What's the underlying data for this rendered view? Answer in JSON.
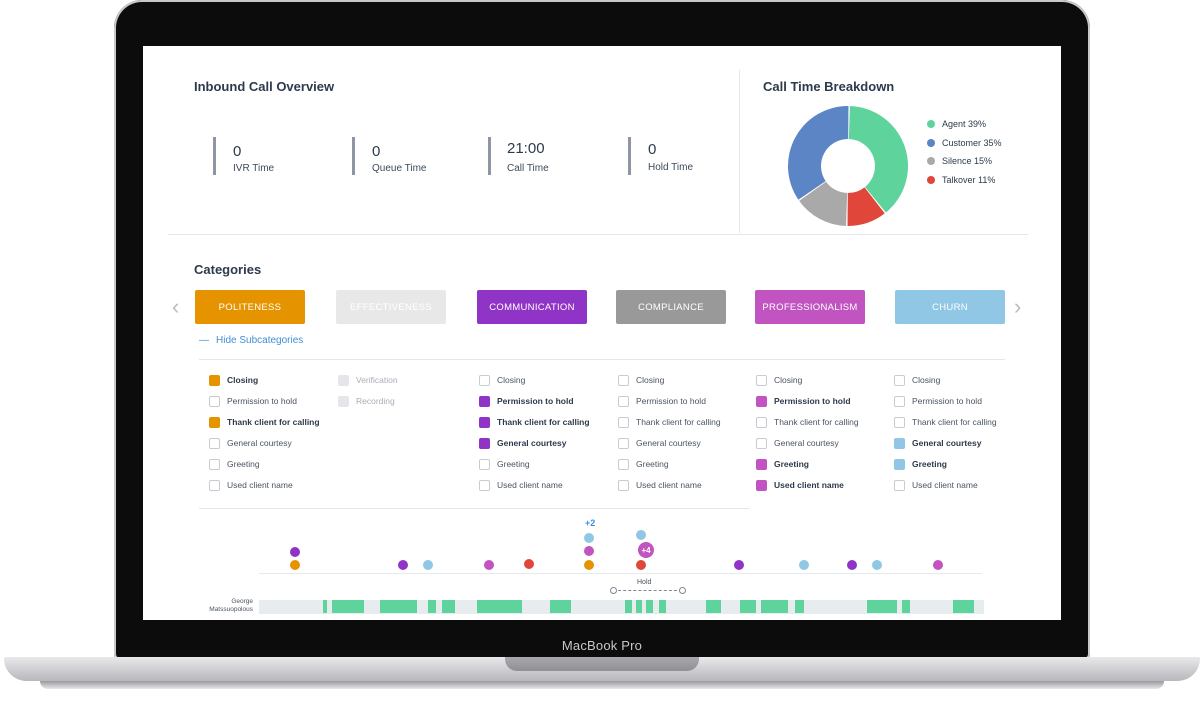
{
  "device": {
    "label": "MacBook Pro"
  },
  "overview": {
    "title": "Inbound Call Overview",
    "metrics": [
      {
        "value": "0",
        "label": "IVR Time"
      },
      {
        "value": "0",
        "label": "Queue Time"
      },
      {
        "value": "21:00",
        "label": "Call Time"
      },
      {
        "value": "0",
        "label": "Hold Time"
      }
    ]
  },
  "breakdown": {
    "title": "Call Time Breakdown",
    "legend": [
      {
        "label": "Agent 39%",
        "color": "#5fd39c",
        "percent": 39
      },
      {
        "label": "Customer 35%",
        "color": "#5c85c6",
        "percent": 35
      },
      {
        "label": "Silence 15%",
        "color": "#a9a9a9",
        "percent": 15
      },
      {
        "label": "Talkover 11%",
        "color": "#e0473a",
        "percent": 11
      }
    ]
  },
  "categories": {
    "title": "Categories",
    "hide_label": "Hide Subcategories",
    "tabs": [
      {
        "label": "POLITENESS",
        "color": "#e59400"
      },
      {
        "label": "EFFECTIVENESS",
        "color": "#e8e8e8"
      },
      {
        "label": "COMMUNICATION",
        "color": "#8f34c6"
      },
      {
        "label": "COMPLIANCE",
        "color": "#999999"
      },
      {
        "label": "PROFESSIONALISM",
        "color": "#c154c0"
      },
      {
        "label": "CHURN",
        "color": "#8fc7e4"
      }
    ],
    "columns": [
      [
        {
          "label": "Closing",
          "checked": true
        },
        {
          "label": "Permission to hold",
          "checked": false
        },
        {
          "label": "Thank client for calling",
          "checked": true
        },
        {
          "label": "General courtesy",
          "checked": false
        },
        {
          "label": "Greeting",
          "checked": false
        },
        {
          "label": "Used client name",
          "checked": false
        }
      ],
      [
        {
          "label": "Verification",
          "checked": false
        },
        {
          "label": "Recording",
          "checked": false
        }
      ],
      [
        {
          "label": "Closing",
          "checked": false
        },
        {
          "label": "Permission to hold",
          "checked": true
        },
        {
          "label": "Thank client for calling",
          "checked": true
        },
        {
          "label": "General courtesy",
          "checked": true
        },
        {
          "label": "Greeting",
          "checked": false
        },
        {
          "label": "Used client name",
          "checked": false
        }
      ],
      [
        {
          "label": "Closing",
          "checked": false
        },
        {
          "label": "Permission to hold",
          "checked": false
        },
        {
          "label": "Thank client for calling",
          "checked": false
        },
        {
          "label": "General courtesy",
          "checked": false
        },
        {
          "label": "Greeting",
          "checked": false
        },
        {
          "label": "Used client name",
          "checked": false
        }
      ],
      [
        {
          "label": "Closing",
          "checked": false
        },
        {
          "label": "Permission to hold",
          "checked": true
        },
        {
          "label": "Thank client for calling",
          "checked": false
        },
        {
          "label": "General courtesy",
          "checked": false
        },
        {
          "label": "Greeting",
          "checked": true
        },
        {
          "label": "Used client name",
          "checked": true
        }
      ],
      [
        {
          "label": "Closing",
          "checked": false
        },
        {
          "label": "Permission to hold",
          "checked": false
        },
        {
          "label": "Thank client for calling",
          "checked": false
        },
        {
          "label": "General courtesy",
          "checked": true
        },
        {
          "label": "Greeting",
          "checked": true
        },
        {
          "label": "Used client name",
          "checked": false
        }
      ]
    ]
  },
  "timeline": {
    "badge_plus2": "+2",
    "badge_plus4": "+4",
    "hold_label": "Hold",
    "speaker": "George Matssuopolous",
    "colors": {
      "orange": "#e59400",
      "purple": "#8f34c6",
      "magenta": "#c154c0",
      "red": "#e0473a",
      "lightblue": "#8fc7e4",
      "green": "#5fd39c",
      "track": "#e7ecef"
    }
  }
}
